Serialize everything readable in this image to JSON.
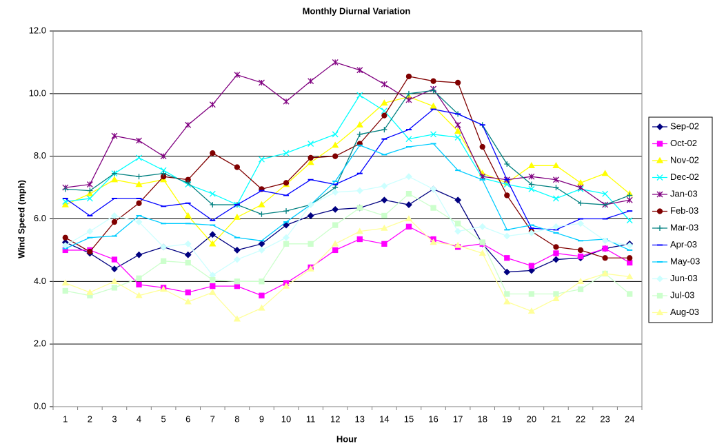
{
  "chart_data": {
    "type": "line",
    "title": "Monthly Diurnal Variation",
    "x_label": "Hour",
    "y_label": "Wind Speed (mph)",
    "categories": [
      "1",
      "2",
      "3",
      "4",
      "5",
      "6",
      "7",
      "8",
      "9",
      "10",
      "11",
      "12",
      "13",
      "14",
      "15",
      "16",
      "17",
      "18",
      "19",
      "20",
      "21",
      "22",
      "23",
      "24"
    ],
    "ylim": [
      0,
      12
    ],
    "yticks": [
      {
        "value": 0,
        "label": "0.0"
      },
      {
        "value": 2,
        "label": "2.0"
      },
      {
        "value": 4,
        "label": "4.0"
      },
      {
        "value": 6,
        "label": "6.0"
      },
      {
        "value": 8,
        "label": "8.0"
      },
      {
        "value": 10,
        "label": "10.0"
      },
      {
        "value": 12,
        "label": "12.0"
      }
    ],
    "grid": true,
    "legend": "right",
    "series": [
      {
        "name": "Sep-02",
        "color": "#000080",
        "marker": "diamond",
        "values": [
          5.25,
          4.9,
          4.4,
          4.85,
          5.1,
          4.85,
          5.5,
          5.0,
          5.2,
          5.8,
          6.1,
          6.3,
          6.35,
          6.6,
          6.45,
          6.95,
          6.6,
          5.2,
          4.3,
          4.35,
          4.7,
          4.75,
          5.05,
          5.2
        ]
      },
      {
        "name": "Oct-02",
        "color": "#ff00ff",
        "marker": "square",
        "values": [
          5.0,
          5.0,
          4.7,
          3.9,
          3.8,
          3.65,
          3.85,
          3.85,
          3.55,
          3.95,
          4.45,
          5.0,
          5.35,
          5.2,
          5.75,
          5.35,
          5.1,
          5.2,
          4.75,
          4.5,
          4.9,
          4.8,
          5.05,
          4.6
        ]
      },
      {
        "name": "Nov-02",
        "color": "#ffff00",
        "marker": "triangle",
        "values": [
          6.45,
          6.8,
          7.25,
          7.1,
          7.25,
          6.1,
          5.2,
          6.05,
          6.45,
          7.1,
          7.8,
          8.35,
          9.0,
          9.7,
          9.9,
          9.6,
          8.8,
          7.45,
          7.15,
          7.7,
          7.7,
          7.15,
          7.45,
          6.8
        ]
      },
      {
        "name": "Dec-02",
        "color": "#00ffff",
        "marker": "x",
        "values": [
          6.55,
          6.65,
          7.45,
          7.95,
          7.55,
          7.1,
          6.8,
          6.45,
          7.9,
          8.1,
          8.4,
          8.7,
          9.95,
          9.45,
          8.55,
          8.7,
          8.6,
          7.3,
          7.1,
          6.95,
          6.65,
          6.95,
          6.8,
          5.95
        ]
      },
      {
        "name": "Jan-03",
        "color": "#800080",
        "marker": "star",
        "values": [
          7.0,
          7.1,
          8.65,
          8.5,
          8.0,
          9.0,
          9.65,
          10.6,
          10.35,
          9.75,
          10.4,
          11.0,
          10.75,
          10.3,
          9.8,
          10.15,
          9.0,
          7.35,
          7.25,
          7.35,
          7.25,
          7.0,
          6.45,
          6.6
        ]
      },
      {
        "name": "Feb-03",
        "color": "#800000",
        "marker": "circle",
        "values": [
          5.4,
          4.95,
          5.9,
          6.5,
          7.35,
          7.25,
          8.1,
          7.65,
          6.95,
          7.15,
          7.95,
          8.0,
          8.4,
          9.3,
          10.55,
          10.4,
          10.35,
          8.3,
          6.75,
          5.6,
          5.1,
          5.0,
          4.75,
          4.75
        ]
      },
      {
        "name": "Mar-03",
        "color": "#008080",
        "marker": "plus",
        "values": [
          6.95,
          6.9,
          7.45,
          7.35,
          7.45,
          7.15,
          6.45,
          6.45,
          6.15,
          6.25,
          6.45,
          7.0,
          8.7,
          8.85,
          10.0,
          10.1,
          9.35,
          9.0,
          7.75,
          7.1,
          7.0,
          6.5,
          6.45,
          6.75
        ]
      },
      {
        "name": "Apr-03",
        "color": "#0000ff",
        "marker": "dash",
        "values": [
          6.65,
          6.1,
          6.65,
          6.65,
          6.4,
          6.5,
          5.95,
          6.45,
          6.9,
          6.75,
          7.25,
          7.1,
          7.45,
          8.55,
          8.85,
          9.5,
          9.35,
          9.0,
          7.25,
          5.7,
          5.65,
          6.0,
          6.0,
          6.25
        ]
      },
      {
        "name": "May-03",
        "color": "#00ccff",
        "marker": "dash",
        "values": [
          5.05,
          5.4,
          5.45,
          6.1,
          5.85,
          5.85,
          5.8,
          5.4,
          5.3,
          5.9,
          6.45,
          7.2,
          8.35,
          8.05,
          8.3,
          8.4,
          7.55,
          7.25,
          5.65,
          5.8,
          5.55,
          5.3,
          5.35,
          5.0
        ]
      },
      {
        "name": "Jun-03",
        "color": "#ccffff",
        "marker": "diamond",
        "values": [
          5.15,
          5.6,
          6.1,
          5.9,
          5.1,
          5.2,
          4.2,
          4.7,
          5.0,
          5.4,
          6.45,
          6.85,
          6.9,
          7.05,
          7.35,
          6.95,
          5.6,
          5.75,
          5.45,
          5.55,
          5.75,
          5.85,
          5.3,
          5.15
        ]
      },
      {
        "name": "Jul-03",
        "color": "#ccffcc",
        "marker": "square",
        "values": [
          3.7,
          3.55,
          3.8,
          4.1,
          4.65,
          4.6,
          4.05,
          4.0,
          4.0,
          5.2,
          5.2,
          5.8,
          6.35,
          6.1,
          6.8,
          6.35,
          5.85,
          5.25,
          3.6,
          3.6,
          3.6,
          3.75,
          4.25,
          3.6
        ]
      },
      {
        "name": "Aug-03",
        "color": "#ffff99",
        "marker": "triangle",
        "values": [
          3.95,
          3.65,
          4.0,
          3.55,
          3.75,
          3.35,
          3.65,
          2.8,
          3.15,
          3.85,
          4.4,
          5.2,
          5.6,
          5.7,
          6.0,
          5.25,
          5.15,
          4.9,
          3.35,
          3.05,
          3.45,
          4.0,
          4.25,
          4.15
        ]
      }
    ]
  }
}
